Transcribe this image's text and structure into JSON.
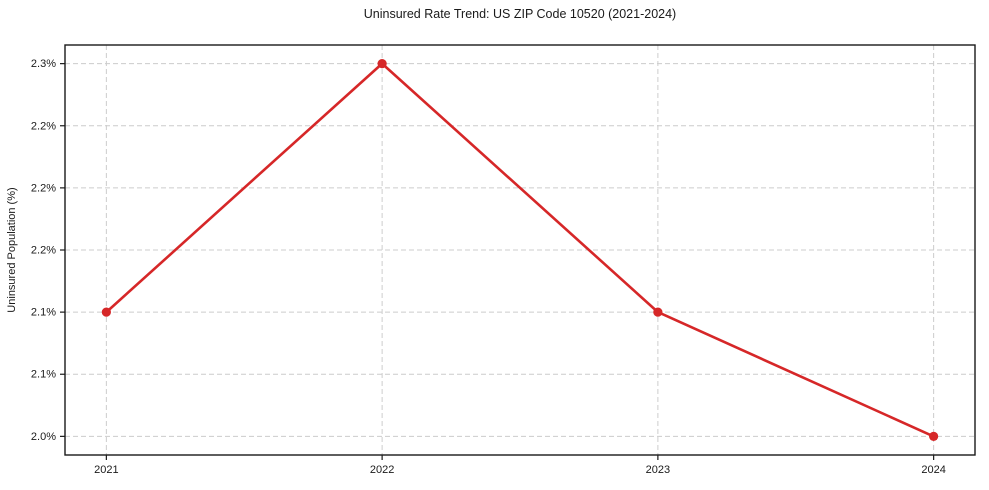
{
  "figure": {
    "background": "#ffffff"
  },
  "chart_data": {
    "type": "line",
    "title": "Uninsured Rate Trend: US ZIP Code 10520 (2021-2024)",
    "xlabel": "",
    "ylabel": "Uninsured Population (%)",
    "x": [
      2021,
      2022,
      2023,
      2024
    ],
    "x_tick_labels": [
      "2021",
      "2022",
      "2023",
      "2024"
    ],
    "values": [
      2.1,
      2.3,
      2.1,
      2.0
    ],
    "yticks": [
      2.0,
      2.05,
      2.1,
      2.15,
      2.2,
      2.25,
      2.3
    ],
    "ytick_labels": [
      "2.0%",
      "2.1%",
      "2.1%",
      "2.2%",
      "2.2%",
      "2.2%",
      "2.3%"
    ],
    "xlim": [
      2020.85,
      2024.15
    ],
    "ylim": [
      1.985,
      2.315
    ],
    "grid": true,
    "grid_style": "dashed",
    "legend": false,
    "line_color": "#d62728",
    "marker": "circle",
    "grid_color": "#cccccc",
    "axis_color": "#1a1a1a",
    "text_color": "#1a1a1a"
  }
}
